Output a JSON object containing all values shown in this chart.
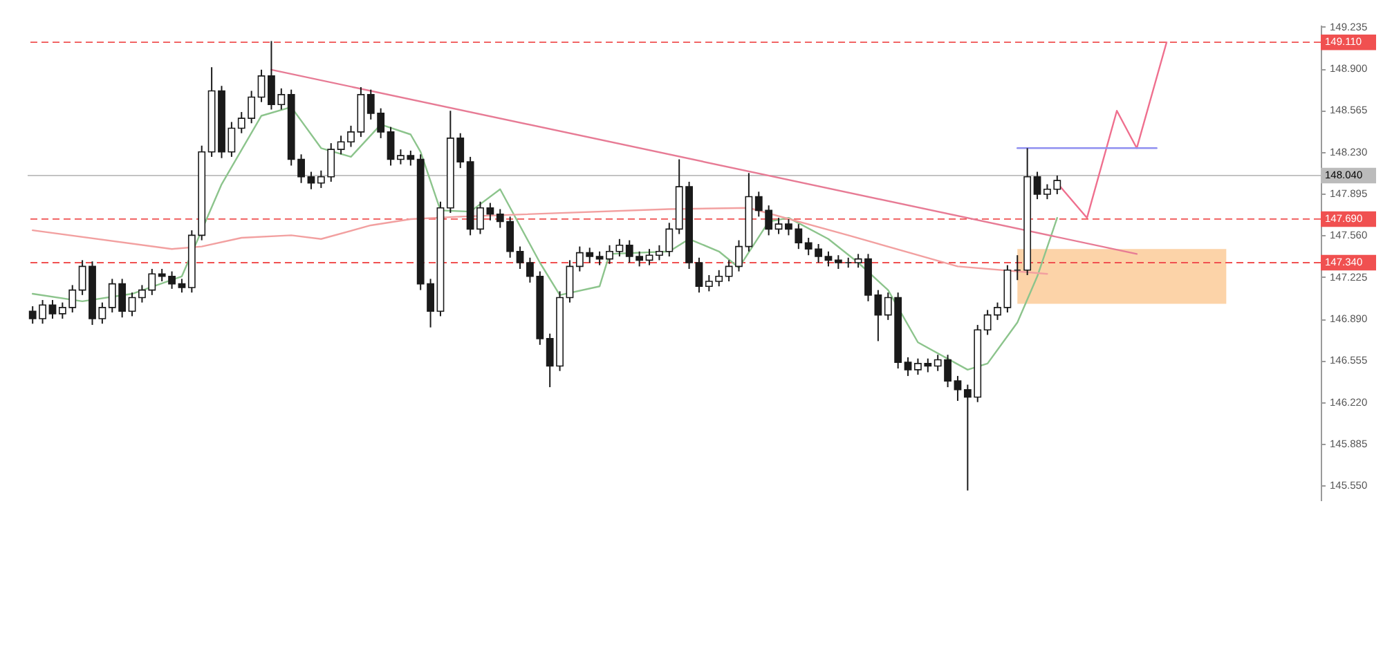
{
  "chart_data": {
    "type": "candlestick",
    "categories": [
      null,
      null,
      null,
      null,
      null,
      null,
      null,
      null,
      null,
      null,
      null,
      null,
      null,
      null,
      null,
      null,
      null,
      null,
      null,
      null,
      null,
      null,
      null,
      null,
      null,
      null,
      null,
      null,
      null,
      null,
      null,
      null,
      null,
      null,
      null,
      null,
      null,
      null,
      null,
      null,
      null,
      null,
      null,
      null,
      null,
      null,
      null,
      null,
      null,
      null,
      null,
      null,
      null,
      null,
      null,
      null,
      null,
      null,
      null,
      null,
      null,
      null,
      null,
      null,
      null,
      null,
      null,
      null,
      null,
      null,
      null,
      null,
      null,
      null,
      null,
      null,
      null,
      null,
      null,
      null,
      null,
      null,
      null,
      null,
      null,
      null,
      null,
      null,
      null,
      null,
      null,
      null,
      null,
      null,
      null,
      null,
      null,
      null,
      null,
      null,
      null,
      null,
      null,
      null,
      null,
      null,
      null,
      null,
      null,
      null,
      null,
      null,
      null,
      null,
      null,
      null,
      null,
      null,
      null,
      null,
      null,
      null,
      null,
      null,
      null,
      null,
      null,
      null,
      null,
      null
    ],
    "ohlc": [
      [
        146.95,
        146.99,
        146.85,
        146.89
      ],
      [
        146.89,
        147.04,
        146.85,
        147.0
      ],
      [
        147.0,
        147.04,
        146.89,
        146.93
      ],
      [
        146.93,
        147.02,
        146.89,
        146.98
      ],
      [
        146.98,
        147.16,
        146.94,
        147.12
      ],
      [
        147.12,
        147.36,
        147.08,
        147.31
      ],
      [
        147.31,
        147.35,
        146.84,
        146.89
      ],
      [
        146.89,
        147.02,
        146.85,
        146.98
      ],
      [
        146.98,
        147.21,
        146.94,
        147.17
      ],
      [
        147.17,
        147.21,
        146.9,
        146.95
      ],
      [
        146.95,
        147.1,
        146.91,
        147.06
      ],
      [
        147.06,
        147.16,
        147.02,
        147.12
      ],
      [
        147.12,
        147.29,
        147.08,
        147.25
      ],
      [
        147.25,
        147.29,
        147.19,
        147.23
      ],
      [
        147.23,
        147.27,
        147.13,
        147.17
      ],
      [
        147.17,
        147.21,
        147.1,
        147.14
      ],
      [
        147.14,
        147.6,
        147.1,
        147.56
      ],
      [
        147.56,
        148.28,
        147.52,
        148.23
      ],
      [
        148.23,
        148.91,
        148.19,
        148.72
      ],
      [
        148.72,
        148.76,
        148.18,
        148.23
      ],
      [
        148.23,
        148.47,
        148.19,
        148.42
      ],
      [
        148.42,
        148.55,
        148.38,
        148.5
      ],
      [
        148.5,
        148.72,
        148.46,
        148.67
      ],
      [
        148.67,
        148.89,
        148.63,
        148.84
      ],
      [
        148.84,
        149.12,
        148.57,
        148.61
      ],
      [
        148.61,
        148.74,
        148.57,
        148.69
      ],
      [
        148.69,
        148.73,
        148.12,
        148.17
      ],
      [
        148.17,
        148.21,
        147.98,
        148.03
      ],
      [
        148.03,
        148.07,
        147.93,
        147.98
      ],
      [
        147.98,
        148.08,
        147.94,
        148.03
      ],
      [
        148.03,
        148.3,
        147.99,
        148.25
      ],
      [
        148.25,
        148.36,
        148.21,
        148.31
      ],
      [
        148.31,
        148.44,
        148.27,
        148.39
      ],
      [
        148.39,
        148.75,
        148.35,
        148.69
      ],
      [
        148.69,
        148.73,
        148.49,
        148.54
      ],
      [
        148.54,
        148.58,
        148.34,
        148.39
      ],
      [
        148.39,
        148.43,
        148.12,
        148.17
      ],
      [
        148.17,
        148.25,
        148.13,
        148.2
      ],
      [
        148.2,
        148.24,
        148.12,
        148.17
      ],
      [
        148.17,
        148.21,
        147.12,
        147.17
      ],
      [
        147.17,
        147.21,
        146.82,
        146.95
      ],
      [
        146.95,
        147.83,
        146.91,
        147.78
      ],
      [
        147.78,
        148.56,
        147.74,
        148.34
      ],
      [
        148.34,
        148.38,
        148.1,
        148.15
      ],
      [
        148.15,
        148.19,
        147.56,
        147.61
      ],
      [
        147.61,
        147.83,
        147.57,
        147.78
      ],
      [
        147.78,
        147.82,
        147.68,
        147.73
      ],
      [
        147.73,
        147.77,
        147.62,
        147.67
      ],
      [
        147.67,
        147.71,
        147.38,
        147.43
      ],
      [
        147.43,
        147.47,
        147.29,
        147.34
      ],
      [
        147.34,
        147.38,
        147.18,
        147.23
      ],
      [
        147.23,
        147.27,
        146.68,
        146.73
      ],
      [
        146.73,
        146.77,
        146.34,
        146.51
      ],
      [
        146.51,
        147.11,
        146.47,
        147.06
      ],
      [
        147.06,
        147.36,
        147.02,
        147.31
      ],
      [
        147.31,
        147.47,
        147.27,
        147.42
      ],
      [
        147.42,
        147.46,
        147.34,
        147.39
      ],
      [
        147.39,
        147.43,
        147.32,
        147.37
      ],
      [
        147.37,
        147.48,
        147.33,
        147.43
      ],
      [
        147.43,
        147.53,
        147.39,
        147.48
      ],
      [
        147.48,
        147.52,
        147.34,
        147.39
      ],
      [
        147.39,
        147.43,
        147.31,
        147.36
      ],
      [
        147.36,
        147.45,
        147.32,
        147.4
      ],
      [
        147.4,
        147.48,
        147.36,
        147.43
      ],
      [
        147.43,
        147.66,
        147.39,
        147.61
      ],
      [
        147.61,
        148.17,
        147.57,
        147.95
      ],
      [
        147.95,
        147.99,
        147.29,
        147.34
      ],
      [
        147.34,
        147.38,
        147.1,
        147.15
      ],
      [
        147.15,
        147.24,
        147.11,
        147.19
      ],
      [
        147.19,
        147.28,
        147.15,
        147.23
      ],
      [
        147.23,
        147.36,
        147.19,
        147.31
      ],
      [
        147.31,
        147.52,
        147.27,
        147.47
      ],
      [
        147.47,
        148.06,
        147.43,
        147.87
      ],
      [
        147.87,
        147.91,
        147.71,
        147.76
      ],
      [
        147.76,
        147.8,
        147.56,
        147.61
      ],
      [
        147.61,
        147.7,
        147.57,
        147.65
      ],
      [
        147.65,
        147.69,
        147.56,
        147.61
      ],
      [
        147.61,
        147.65,
        147.45,
        147.5
      ],
      [
        147.5,
        147.54,
        147.4,
        147.45
      ],
      [
        147.45,
        147.49,
        147.34,
        147.39
      ],
      [
        147.39,
        147.43,
        147.31,
        147.36
      ],
      [
        147.36,
        147.4,
        147.29,
        147.34
      ],
      [
        147.34,
        147.38,
        147.3,
        147.34
      ],
      [
        147.34,
        147.41,
        147.3,
        147.37
      ],
      [
        147.37,
        147.41,
        147.03,
        147.08
      ],
      [
        147.08,
        147.12,
        146.71,
        146.92
      ],
      [
        146.92,
        147.1,
        146.88,
        147.06
      ],
      [
        147.06,
        147.1,
        146.49,
        146.54
      ],
      [
        146.54,
        146.58,
        146.43,
        146.48
      ],
      [
        146.48,
        146.57,
        146.44,
        146.53
      ],
      [
        146.53,
        146.57,
        146.46,
        146.51
      ],
      [
        146.51,
        146.6,
        146.47,
        146.56
      ],
      [
        146.56,
        146.6,
        146.34,
        146.39
      ],
      [
        146.39,
        146.43,
        146.23,
        146.32
      ],
      [
        146.32,
        146.36,
        145.51,
        146.26
      ],
      [
        146.26,
        146.84,
        146.22,
        146.8
      ],
      [
        146.8,
        146.96,
        146.76,
        146.92
      ],
      [
        146.92,
        147.02,
        146.88,
        146.98
      ],
      [
        146.98,
        147.32,
        146.94,
        147.28
      ],
      [
        147.28,
        147.4,
        147.2,
        147.28
      ],
      [
        147.28,
        148.26,
        147.24,
        148.03
      ],
      [
        148.03,
        148.07,
        147.85,
        147.89
      ],
      [
        147.89,
        147.97,
        147.85,
        147.93
      ],
      [
        147.93,
        148.04,
        147.89,
        148.0
      ],
      null,
      null,
      null,
      null,
      null,
      null,
      null,
      null,
      null,
      null,
      null,
      null,
      null,
      null,
      null,
      null,
      null,
      null,
      null,
      null,
      null,
      null,
      null,
      null,
      null,
      null
    ],
    "color": "#1a1a1a",
    "series": [
      {
        "type": "area",
        "color": "#fcd3a8",
        "values": [
          null,
          null,
          null,
          null,
          null,
          null,
          null,
          null,
          null,
          null,
          null,
          null,
          null,
          null,
          null,
          null,
          null,
          null,
          null,
          null,
          null,
          null,
          null,
          null,
          null,
          null,
          null,
          null,
          null,
          null,
          null,
          null,
          null,
          null,
          null,
          null,
          null,
          null,
          null,
          null,
          null,
          null,
          null,
          null,
          null,
          null,
          null,
          null,
          null,
          null,
          null,
          null,
          null,
          null,
          null,
          null,
          null,
          null,
          null,
          null,
          null,
          null,
          null,
          null,
          null,
          null,
          null,
          null,
          null,
          null,
          null,
          null,
          null,
          null,
          null,
          null,
          null,
          null,
          null,
          null,
          null,
          null,
          null,
          null,
          null,
          null,
          null,
          null,
          null,
          null,
          null,
          null,
          null,
          null,
          null,
          null,
          null,
          null,
          null,
          null,
          null,
          null,
          null,
          null,
          null,
          null,
          null,
          null,
          null,
          null,
          null,
          null,
          null,
          null,
          null,
          null,
          null,
          null,
          null,
          null,
          null,
          null,
          null,
          null,
          null,
          null,
          null,
          null,
          null,
          null
        ],
        "upper": [
          null,
          null,
          null,
          null,
          null,
          null,
          null,
          null,
          null,
          null,
          null,
          null,
          null,
          null,
          null,
          null,
          null,
          null,
          null,
          null,
          null,
          null,
          null,
          null,
          null,
          null,
          null,
          null,
          null,
          null,
          null,
          null,
          null,
          null,
          null,
          null,
          null,
          null,
          null,
          null,
          null,
          null,
          null,
          null,
          null,
          null,
          null,
          null,
          null,
          null,
          null,
          null,
          null,
          null,
          null,
          null,
          null,
          null,
          null,
          null,
          null,
          null,
          null,
          null,
          null,
          null,
          null,
          null,
          null,
          null,
          null,
          null,
          null,
          null,
          null,
          null,
          null,
          null,
          null,
          null,
          null,
          null,
          null,
          null,
          null,
          null,
          null,
          null,
          null,
          null,
          null,
          null,
          null,
          null,
          null,
          null,
          null,
          null,
          null,
          147.45,
          null,
          null,
          null,
          null,
          null,
          null,
          null,
          null,
          null,
          null,
          null,
          null,
          null,
          null,
          null,
          null,
          null,
          null,
          null,
          null,
          147.45,
          null,
          null,
          null,
          null,
          null,
          null,
          null,
          null,
          null
        ],
        "lower": [
          null,
          null,
          null,
          null,
          null,
          null,
          null,
          null,
          null,
          null,
          null,
          null,
          null,
          null,
          null,
          null,
          null,
          null,
          null,
          null,
          null,
          null,
          null,
          null,
          null,
          null,
          null,
          null,
          null,
          null,
          null,
          null,
          null,
          null,
          null,
          null,
          null,
          null,
          null,
          null,
          null,
          null,
          null,
          null,
          null,
          null,
          null,
          null,
          null,
          null,
          null,
          null,
          null,
          null,
          null,
          null,
          null,
          null,
          null,
          null,
          null,
          null,
          null,
          null,
          null,
          null,
          null,
          null,
          null,
          null,
          null,
          null,
          null,
          null,
          null,
          null,
          null,
          null,
          null,
          null,
          null,
          null,
          null,
          null,
          null,
          null,
          null,
          null,
          null,
          null,
          null,
          null,
          null,
          null,
          null,
          null,
          null,
          null,
          null,
          147.01,
          null,
          null,
          null,
          null,
          null,
          null,
          null,
          null,
          null,
          null,
          null,
          null,
          null,
          null,
          null,
          null,
          null,
          null,
          null,
          null,
          147.01,
          null,
          null,
          null,
          null,
          null,
          null,
          null,
          null,
          null
        ]
      },
      {
        "type": "line",
        "color": "#8cc48c",
        "values": [
          147.09,
          null,
          null,
          null,
          null,
          147.03,
          null,
          null,
          null,
          null,
          147.09,
          null,
          null,
          null,
          null,
          147.23,
          null,
          null,
          null,
          147.97,
          null,
          null,
          null,
          148.52,
          null,
          null,
          148.59,
          null,
          null,
          148.26,
          null,
          null,
          148.19,
          null,
          null,
          148.45,
          null,
          null,
          148.37,
          148.23,
          null,
          147.76,
          null,
          null,
          147.75,
          null,
          null,
          147.93,
          null,
          null,
          null,
          147.34,
          null,
          147.08,
          null,
          null,
          null,
          147.15,
          147.41,
          null,
          null,
          null,
          null,
          null,
          147.43,
          null,
          147.53,
          null,
          null,
          147.43,
          null,
          147.3,
          null,
          null,
          147.67,
          null,
          147.7,
          null,
          null,
          null,
          147.53,
          null,
          null,
          147.34,
          null,
          null,
          147.12,
          null,
          null,
          146.7,
          null,
          null,
          null,
          null,
          146.48,
          null,
          146.53,
          null,
          null,
          146.86,
          null,
          147.23,
          null,
          147.7,
          null,
          null,
          null,
          null,
          null,
          null,
          null,
          null,
          null,
          null,
          null,
          null,
          null,
          null,
          null,
          null,
          null,
          null,
          null,
          null,
          null,
          null,
          null,
          null,
          null,
          null
        ]
      },
      {
        "type": "line",
        "color": "#f2a0a0",
        "values": [
          147.6,
          null,
          null,
          null,
          null,
          null,
          null,
          null,
          null,
          null,
          null,
          null,
          null,
          null,
          147.45,
          null,
          null,
          147.47,
          null,
          null,
          null,
          147.54,
          null,
          null,
          null,
          null,
          147.56,
          null,
          null,
          147.53,
          null,
          null,
          null,
          null,
          147.64,
          null,
          null,
          null,
          147.69,
          null,
          null,
          null,
          null,
          147.71,
          null,
          null,
          null,
          null,
          null,
          null,
          null,
          null,
          null,
          null,
          null,
          null,
          null,
          null,
          null,
          null,
          null,
          null,
          null,
          null,
          147.77,
          null,
          null,
          null,
          null,
          null,
          null,
          null,
          147.78,
          null,
          null,
          null,
          null,
          null,
          null,
          null,
          null,
          null,
          147.56,
          null,
          null,
          null,
          null,
          null,
          null,
          null,
          null,
          null,
          null,
          147.31,
          null,
          null,
          null,
          null,
          null,
          null,
          null,
          null,
          147.25,
          null,
          null,
          null,
          null,
          null,
          null,
          null,
          null,
          null,
          null,
          null,
          null,
          null,
          null,
          null,
          null,
          null,
          null,
          null,
          null,
          null,
          null,
          null,
          null,
          null,
          null,
          null
        ]
      },
      {
        "type": "line",
        "color": "#e77b95",
        "values": [
          null,
          null,
          null,
          null,
          null,
          null,
          null,
          null,
          null,
          null,
          null,
          null,
          null,
          null,
          null,
          null,
          null,
          null,
          null,
          null,
          null,
          null,
          null,
          null,
          148.89,
          null,
          null,
          null,
          null,
          null,
          null,
          null,
          null,
          null,
          null,
          null,
          null,
          null,
          null,
          null,
          null,
          null,
          null,
          null,
          null,
          null,
          null,
          null,
          null,
          null,
          null,
          null,
          null,
          null,
          null,
          null,
          null,
          null,
          null,
          null,
          null,
          null,
          null,
          null,
          null,
          null,
          null,
          null,
          null,
          null,
          null,
          null,
          null,
          null,
          null,
          null,
          null,
          null,
          null,
          null,
          null,
          null,
          null,
          null,
          null,
          null,
          null,
          null,
          null,
          null,
          null,
          null,
          null,
          null,
          null,
          null,
          null,
          null,
          null,
          null,
          null,
          null,
          null,
          null,
          null,
          null,
          null,
          null,
          null,
          null,
          null,
          147.41,
          null,
          null,
          null,
          null,
          null,
          null,
          null,
          null,
          null,
          null,
          null,
          null,
          null,
          null,
          null,
          null,
          null,
          null
        ]
      },
      {
        "type": "line",
        "color": "#ef6f8e",
        "values": [
          null,
          null,
          null,
          null,
          null,
          null,
          null,
          null,
          null,
          null,
          null,
          null,
          null,
          null,
          null,
          null,
          null,
          null,
          null,
          null,
          null,
          null,
          null,
          null,
          null,
          null,
          null,
          null,
          null,
          null,
          null,
          null,
          null,
          null,
          null,
          null,
          null,
          null,
          null,
          null,
          null,
          null,
          null,
          null,
          null,
          null,
          null,
          null,
          null,
          null,
          null,
          null,
          null,
          null,
          null,
          null,
          null,
          null,
          null,
          null,
          null,
          null,
          null,
          null,
          null,
          null,
          null,
          null,
          null,
          null,
          null,
          null,
          null,
          null,
          null,
          null,
          null,
          null,
          null,
          null,
          null,
          null,
          null,
          null,
          null,
          null,
          null,
          null,
          null,
          null,
          null,
          null,
          null,
          null,
          null,
          null,
          null,
          null,
          null,
          null,
          null,
          null,
          null,
          147.98,
          null,
          null,
          147.7,
          null,
          null,
          148.56,
          null,
          148.26,
          null,
          null,
          149.11,
          null,
          null,
          null,
          null,
          null,
          null,
          null,
          null,
          null,
          null,
          null,
          null,
          null,
          null,
          null
        ]
      },
      {
        "type": "line",
        "color": "#8f8ff0",
        "values": [
          null,
          null,
          null,
          null,
          null,
          null,
          null,
          null,
          null,
          null,
          null,
          null,
          null,
          null,
          null,
          null,
          null,
          null,
          null,
          null,
          null,
          null,
          null,
          null,
          null,
          null,
          null,
          null,
          null,
          null,
          null,
          null,
          null,
          null,
          null,
          null,
          null,
          null,
          null,
          null,
          null,
          null,
          null,
          null,
          null,
          null,
          null,
          null,
          null,
          null,
          null,
          null,
          null,
          null,
          null,
          null,
          null,
          null,
          null,
          null,
          null,
          null,
          null,
          null,
          null,
          null,
          null,
          null,
          null,
          null,
          null,
          null,
          null,
          null,
          null,
          null,
          null,
          null,
          null,
          null,
          null,
          null,
          null,
          null,
          null,
          null,
          null,
          null,
          null,
          null,
          null,
          null,
          null,
          null,
          null,
          null,
          null,
          null,
          null,
          148.26,
          null,
          null,
          null,
          null,
          null,
          null,
          null,
          null,
          null,
          null,
          null,
          null,
          null,
          148.26,
          null,
          null,
          null,
          null,
          null,
          null,
          null,
          null,
          null,
          null,
          null,
          null,
          null,
          null,
          null,
          null
        ]
      }
    ],
    "ref_lines": [
      {
        "axis": "y",
        "value": 149.11,
        "label": "149.110",
        "color": "#f05050",
        "line_style": "dashed"
      },
      {
        "axis": "y",
        "value": 148.04,
        "label": "148.040",
        "color": "#bbbbbb",
        "line_style": "solid"
      },
      {
        "axis": "y",
        "value": 147.69,
        "label": "147.690",
        "color": "#f05050",
        "line_style": "dashed"
      },
      {
        "axis": "y",
        "value": 147.34,
        "label": "147.340",
        "color": "#f05050",
        "line_style": "dashed"
      }
    ],
    "ylim": [
      145.43,
      149.25
    ],
    "yticks": [
      {
        "value": 145.55,
        "label": "145.550"
      },
      145.885,
      {
        "value": 146.22,
        "label": "146.220"
      },
      146.555,
      {
        "value": 146.89,
        "label": "146.890"
      },
      147.225,
      {
        "value": 147.56,
        "label": "147.560"
      },
      147.895,
      {
        "value": 148.23,
        "label": "148.230"
      },
      148.565,
      {
        "value": 148.9,
        "label": "148.900"
      },
      149.235
    ],
    "tick_labels": "y"
  }
}
